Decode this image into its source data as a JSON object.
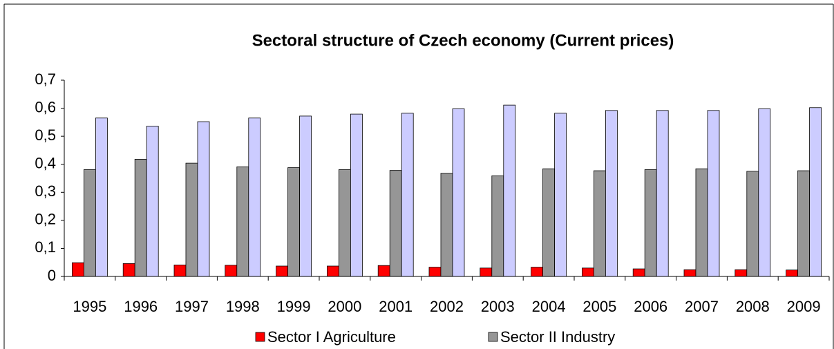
{
  "chart_data": {
    "type": "bar",
    "title": "Sectoral structure of Czech economy (Current prices)",
    "categories": [
      "1995",
      "1996",
      "1997",
      "1998",
      "1999",
      "2000",
      "2001",
      "2002",
      "2003",
      "2004",
      "2005",
      "2006",
      "2007",
      "2008",
      "2009"
    ],
    "series": [
      {
        "name": "Sector I Agriculture",
        "color": "#ff0000",
        "values": [
          0.049,
          0.046,
          0.041,
          0.04,
          0.037,
          0.037,
          0.039,
          0.033,
          0.03,
          0.033,
          0.03,
          0.027,
          0.024,
          0.024,
          0.023
        ]
      },
      {
        "name": "Sector II Industry",
        "color": "#969696",
        "values": [
          0.381,
          0.418,
          0.404,
          0.391,
          0.388,
          0.381,
          0.378,
          0.368,
          0.359,
          0.384,
          0.377,
          0.381,
          0.384,
          0.375,
          0.377
        ]
      },
      {
        "color": "#ccccff",
        "values": [
          0.565,
          0.536,
          0.552,
          0.565,
          0.572,
          0.579,
          0.582,
          0.598,
          0.611,
          0.582,
          0.592,
          0.592,
          0.592,
          0.598,
          0.602
        ]
      }
    ],
    "ylim": [
      0,
      0.7
    ],
    "yticks": [
      0,
      {
        "value": 0.1,
        "label": "0,1"
      },
      {
        "value": 0.2,
        "label": "0,2"
      },
      {
        "value": 0.3,
        "label": "0,3"
      },
      {
        "value": 0.4,
        "label": "0,4"
      },
      {
        "value": 0.5,
        "label": "0,5"
      },
      {
        "value": 0.6,
        "label": "0,6"
      },
      {
        "value": 0.7,
        "label": "0,7"
      }
    ],
    "grid": false
  }
}
